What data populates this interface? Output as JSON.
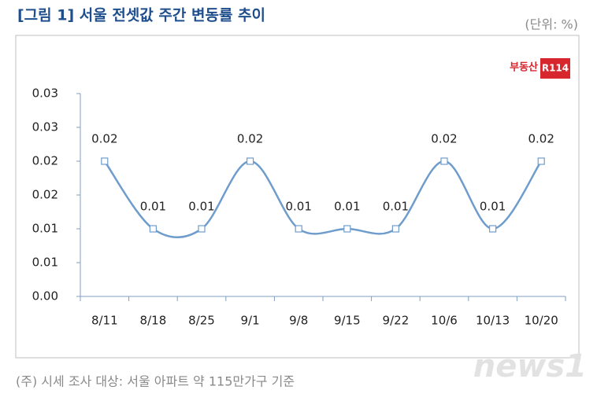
{
  "chart_data": {
    "type": "line",
    "title": "[그림 1] 서울 전셋값 주간 변동률 추이",
    "unit_label": "(단위: %)",
    "note": "(주) 시세 조사 대상: 서울 아파트 약 115만가구 기준",
    "logo": {
      "text": "부동산",
      "badge": "R114"
    },
    "watermark": "news1",
    "categories": [
      "8/11",
      "8/18",
      "8/25",
      "9/1",
      "9/8",
      "9/15",
      "9/22",
      "10/6",
      "10/13",
      "10/20"
    ],
    "values": [
      0.02,
      0.01,
      0.01,
      0.02,
      0.01,
      0.01,
      0.01,
      0.02,
      0.01,
      0.02
    ],
    "color": "#6e9ccc",
    "smooth": true,
    "ylim": [
      0,
      0.03
    ],
    "yticks": [
      {
        "value": 0,
        "label": "0.00"
      },
      {
        "value": 0.005,
        "label": "0.01"
      },
      0.01,
      {
        "value": 0.015,
        "label": "0.02"
      },
      0.02,
      {
        "value": 0.025,
        "label": "0.03"
      },
      0.03
    ]
  }
}
